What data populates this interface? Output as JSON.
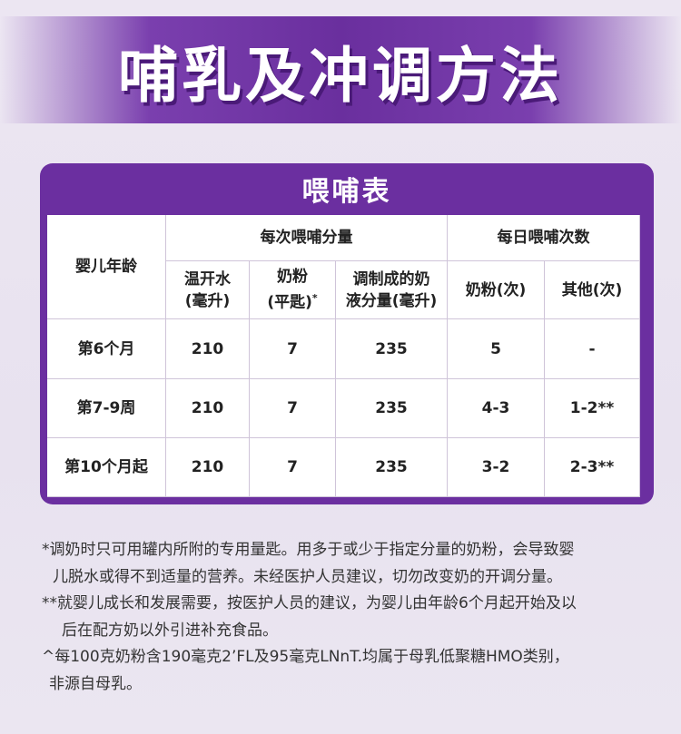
{
  "header": {
    "title": "哺乳及冲调方法"
  },
  "table": {
    "title": "喂哺表",
    "age_header": "婴儿年龄",
    "group_headers": [
      "每次喂哺分量",
      "每日喂哺次数"
    ],
    "sub_headers": [
      {
        "lines": [
          "温开水",
          "(毫升)"
        ]
      },
      {
        "lines": [
          "奶粉",
          "(平匙)"
        ],
        "mark": "*"
      },
      {
        "lines": [
          "调制成的奶",
          "液分量(毫升)"
        ]
      },
      {
        "lines": [
          "奶粉(次)"
        ]
      },
      {
        "lines": [
          "其他(次)"
        ]
      }
    ],
    "rows": [
      [
        "第6个月",
        "210",
        "7",
        "235",
        "5",
        "-"
      ],
      [
        "第7-9周",
        "210",
        "7",
        "235",
        "4-3",
        "1-2**"
      ],
      [
        "第10个月起",
        "210",
        "7",
        "235",
        "3-2",
        "2-3**"
      ]
    ]
  },
  "notes": [
    [
      "*调奶时只可用罐内所附的专用量匙。用多于或少于指定分量的奶粉，会导致婴",
      "儿脱水或得不到适量的营养。未经医护人员建议，切勿改变奶的开调分量。"
    ],
    [
      "**就婴儿成长和发展需要，按医护人员的建议，为婴儿由年龄6个月起开始及以",
      "后在配方奶以外引进补充食品。"
    ],
    [
      "^每100克奶粉含190毫克2’FL及95毫克LNnT.均属于母乳低聚糖HMO类别，",
      "非源自母乳。"
    ]
  ]
}
